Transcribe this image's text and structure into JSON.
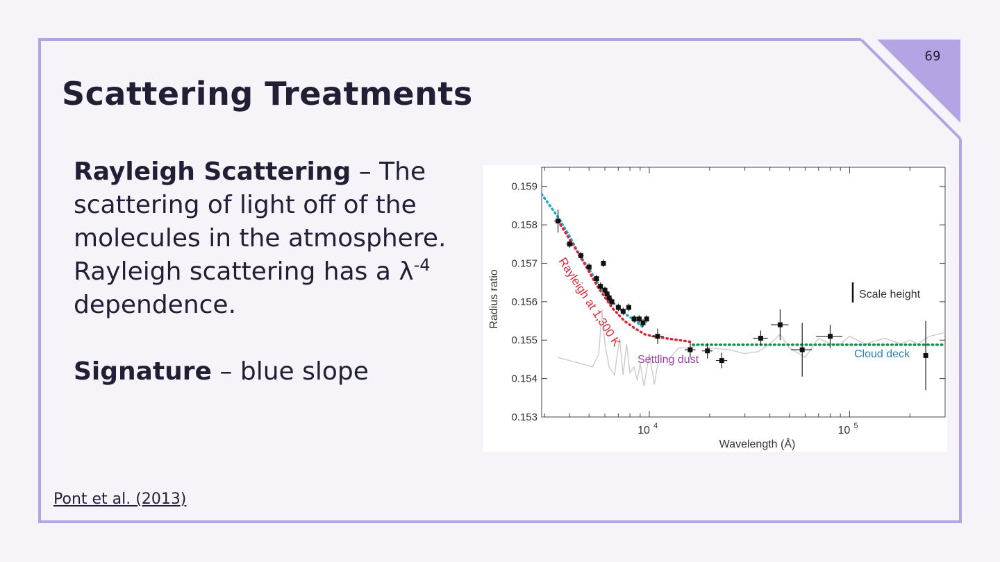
{
  "slide": {
    "page_number": "69",
    "title": "Scattering Treatments",
    "rayleigh": {
      "term": "Rayleigh Scattering",
      "description": " – The scattering of light off of the molecules in the atmosphere. Rayleigh scattering has a λ",
      "exponent": "-4",
      "tail": " dependence."
    },
    "signature": {
      "term": "Signature",
      "description": " – blue slope"
    },
    "citation": "Pont et al. (2013)",
    "colors": {
      "background": "#f6f4f8",
      "frame": "#b4a4e4",
      "text": "#221e35"
    }
  },
  "chart_data": {
    "type": "scatter",
    "xlabel": "Wavelength (Å)",
    "ylabel": "Radius ratio",
    "x_scale": "log",
    "xlim": [
      2900,
      300000
    ],
    "ylim": [
      0.153,
      0.1595
    ],
    "x_ticks": [
      {
        "value": 10000,
        "base": "10",
        "exp": "4"
      },
      {
        "value": 100000,
        "base": "10",
        "exp": "5"
      }
    ],
    "y_ticks": [
      "0.153",
      "0.154",
      "0.155",
      "0.156",
      "0.157",
      "0.158",
      "0.159"
    ],
    "annotations": [
      {
        "text": "Rayleigh at 1,300 K",
        "color": "#d62a3a"
      },
      {
        "text": "Settling dust",
        "color": "#9a3fa6"
      },
      {
        "text": "Cloud deck",
        "color": "#2a7fb3"
      },
      {
        "text": "Scale height",
        "color": "#333333"
      }
    ],
    "points": [
      {
        "x": 3500,
        "y": 0.1581,
        "xerr": 150,
        "yerr": 0.0003
      },
      {
        "x": 4000,
        "y": 0.1575,
        "xerr": 150,
        "yerr": 0.0001
      },
      {
        "x": 4550,
        "y": 0.1572,
        "xerr": 150,
        "yerr": 0.0001
      },
      {
        "x": 5000,
        "y": 0.1569,
        "xerr": 150,
        "yerr": 0.0001
      },
      {
        "x": 5450,
        "y": 0.1566,
        "xerr": 100,
        "yerr": 0.0001
      },
      {
        "x": 5900,
        "y": 0.157,
        "xerr": 100,
        "yerr": 0.0001
      },
      {
        "x": 5700,
        "y": 0.1564,
        "xerr": 100,
        "yerr": 0.0001
      },
      {
        "x": 6000,
        "y": 0.1563,
        "xerr": 100,
        "yerr": 0.0001
      },
      {
        "x": 6150,
        "y": 0.1562,
        "xerr": 100,
        "yerr": 0.0001
      },
      {
        "x": 6300,
        "y": 0.1561,
        "xerr": 100,
        "yerr": 0.0001
      },
      {
        "x": 6500,
        "y": 0.156,
        "xerr": 100,
        "yerr": 0.0001
      },
      {
        "x": 7000,
        "y": 0.15585,
        "xerr": 150,
        "yerr": 0.0001
      },
      {
        "x": 7400,
        "y": 0.15575,
        "xerr": 150,
        "yerr": 0.0001
      },
      {
        "x": 7900,
        "y": 0.15585,
        "xerr": 150,
        "yerr": 0.0001
      },
      {
        "x": 8400,
        "y": 0.15555,
        "xerr": 150,
        "yerr": 0.0001
      },
      {
        "x": 8900,
        "y": 0.15555,
        "xerr": 150,
        "yerr": 0.0001
      },
      {
        "x": 9300,
        "y": 0.15545,
        "xerr": 150,
        "yerr": 0.0001
      },
      {
        "x": 9700,
        "y": 0.15555,
        "xerr": 150,
        "yerr": 0.0001
      },
      {
        "x": 11000,
        "y": 0.1551,
        "xerr": 800,
        "yerr": 0.0002
      },
      {
        "x": 16000,
        "y": 0.15475,
        "xerr": 1000,
        "yerr": 0.0002
      },
      {
        "x": 19500,
        "y": 0.15472,
        "xerr": 1200,
        "yerr": 0.0002
      },
      {
        "x": 23000,
        "y": 0.15447,
        "xerr": 1500,
        "yerr": 0.0002
      },
      {
        "x": 36000,
        "y": 0.15505,
        "xerr": 3000,
        "yerr": 0.0002
      },
      {
        "x": 45000,
        "y": 0.1554,
        "xerr": 4500,
        "yerr": 0.0004
      },
      {
        "x": 58000,
        "y": 0.15475,
        "xerr": 7000,
        "yerr": 0.0007
      },
      {
        "x": 80000,
        "y": 0.1551,
        "xerr": 12000,
        "yerr": 0.0003
      },
      {
        "x": 240000,
        "y": 0.1546,
        "xerr": 4000,
        "yerr": 0.0009
      }
    ],
    "curves": [
      {
        "label": "Rayleigh at 1,300 K",
        "style": "dotted",
        "color": "#d62a3a",
        "x": [
          3500,
          4500,
          5500,
          6500,
          7500,
          8500,
          9500,
          10500,
          12000,
          14000,
          16500
        ],
        "y": [
          0.1581,
          0.1572,
          0.1564,
          0.15585,
          0.1555,
          0.1553,
          0.15515,
          0.1551,
          0.15505,
          0.155,
          0.15495
        ]
      },
      {
        "label": "Cloud deck",
        "style": "dotted",
        "color": "#1b8a4a",
        "x": [
          16500,
          300000
        ],
        "y": [
          0.15488,
          0.15488
        ]
      },
      {
        "label": "Settling dust",
        "style": "dotted",
        "color": "#1fa7c6",
        "x": [
          2900,
          3500,
          4000,
          4500,
          5000,
          5500,
          6000,
          6500,
          7000,
          7500,
          8000,
          8500,
          9000,
          9500
        ],
        "y": [
          0.1588,
          0.1582,
          0.1577,
          0.1572,
          0.15685,
          0.1565,
          0.15625,
          0.156,
          0.15585,
          0.1557,
          0.1556,
          0.1555,
          0.1554,
          0.1553
        ]
      },
      {
        "label": "Model spectrum",
        "style": "solid",
        "color": "#c8c8c8",
        "x": [
          3500,
          4500,
          5200,
          5600,
          5800,
          6000,
          6300,
          6700,
          7100,
          7400,
          7700,
          8000,
          8400,
          8700,
          9000,
          9400,
          10000,
          10600,
          11200,
          12500,
          14000,
          16000,
          18000,
          20000,
          25000,
          30000,
          35000,
          40000,
          45000,
          50000,
          60000,
          70000,
          80000,
          90000,
          100000,
          120000,
          150000,
          180000,
          200000,
          220000,
          250000,
          300000
        ],
        "y": [
          0.15455,
          0.1544,
          0.1543,
          0.15465,
          0.1558,
          0.1549,
          0.1543,
          0.1541,
          0.15505,
          0.1541,
          0.1549,
          0.15415,
          0.1543,
          0.15395,
          0.1544,
          0.1538,
          0.15465,
          0.15385,
          0.1546,
          0.1545,
          0.1548,
          0.1548,
          0.1549,
          0.1548,
          0.15475,
          0.15465,
          0.1547,
          0.1549,
          0.15515,
          0.1548,
          0.15455,
          0.15505,
          0.1549,
          0.1549,
          0.1551,
          0.1549,
          0.15505,
          0.1549,
          0.155,
          0.1549,
          0.1551,
          0.1552
        ]
      }
    ]
  }
}
